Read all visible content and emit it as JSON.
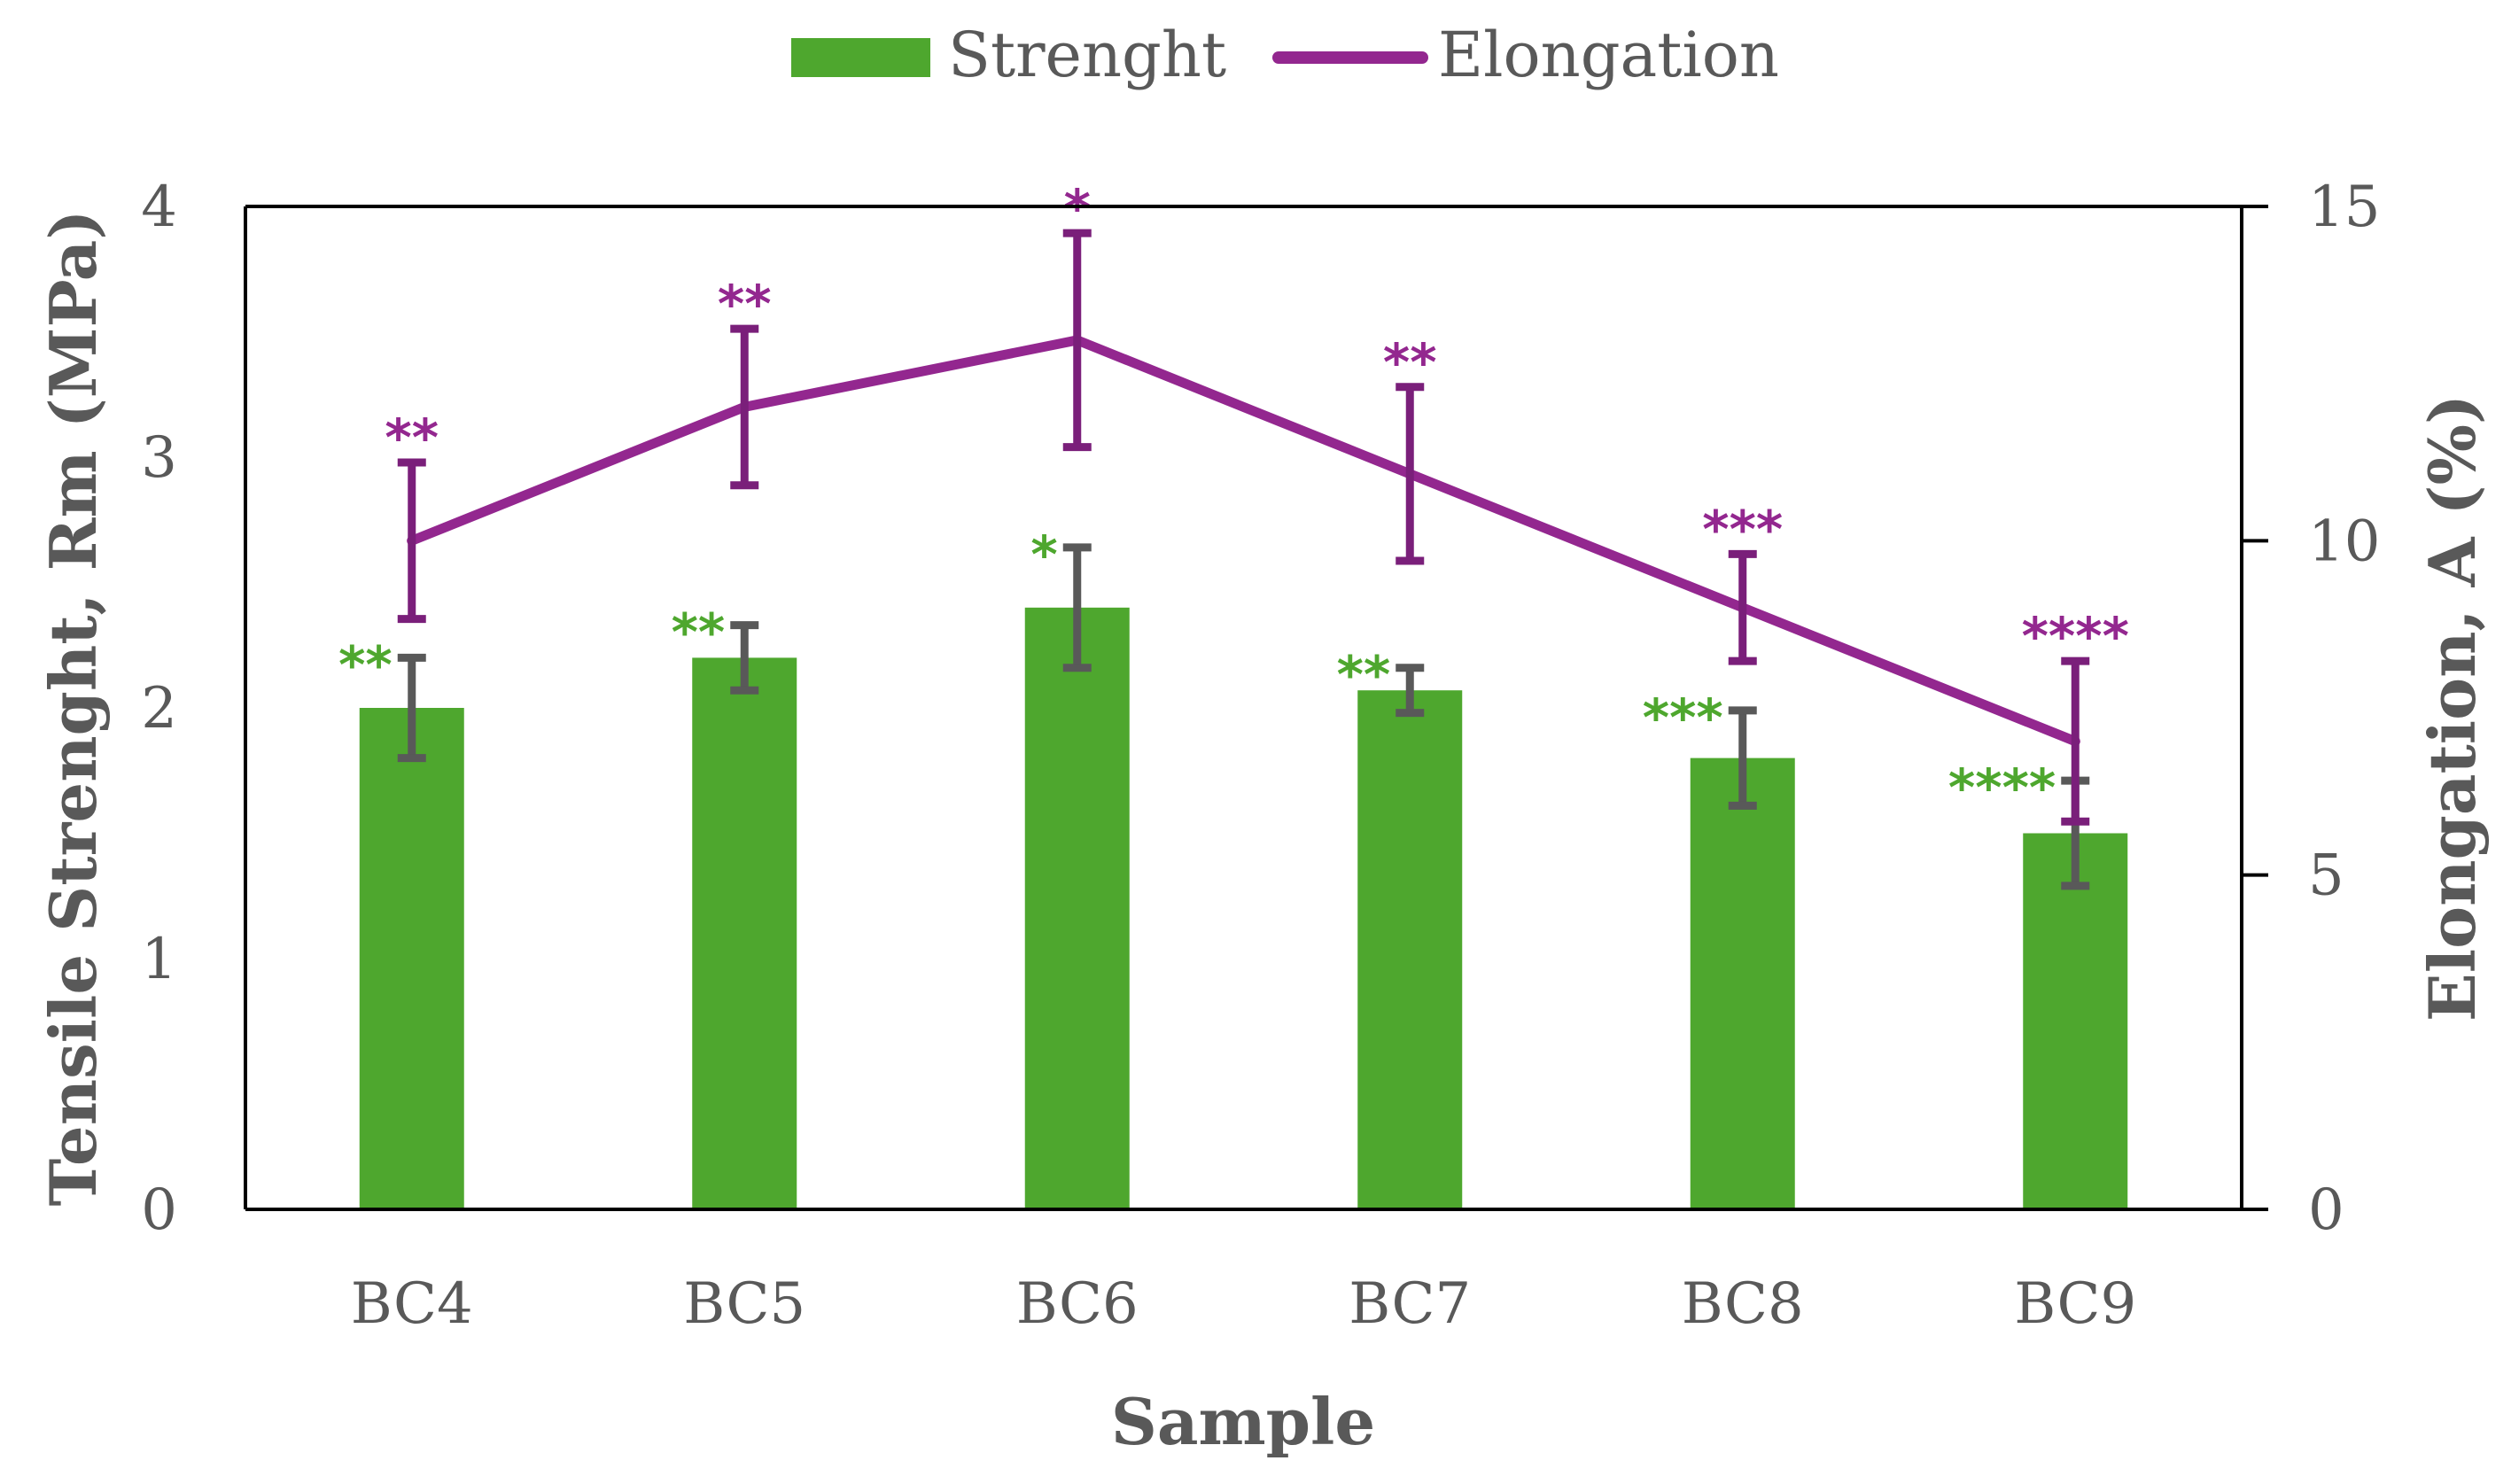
{
  "colors": {
    "strength": "#4ea72e",
    "elongation": "#93278f",
    "strength_error": "#595959",
    "elongation_error": "#7a1f7a",
    "axis": "#000000",
    "text": "#595959"
  },
  "legend": {
    "strength_label": "Strenght",
    "elongation_label": "Elongation"
  },
  "chart_data": {
    "type": "bar",
    "title": "",
    "xlabel": "Sample",
    "ylabel": "Tensile Strenght, Rm (MPa)",
    "y2label": "Elongation, A (%)",
    "ylim": [
      0,
      4
    ],
    "y2lim": [
      0,
      15
    ],
    "yticks": [
      "0",
      "1",
      "2",
      "3",
      "4"
    ],
    "y2ticks": [
      "0",
      "5",
      "10",
      "15"
    ],
    "legend_position": "top-center",
    "categories": [
      "BC4",
      "BC5",
      "BC6",
      "BC7",
      "BC8",
      "BC9"
    ],
    "series": [
      {
        "name": "Strenght",
        "type": "bar",
        "axis": "left",
        "values": [
          2.0,
          2.2,
          2.4,
          2.07,
          1.8,
          1.5
        ],
        "errors": [
          0.2,
          0.13,
          0.24,
          0.09,
          0.19,
          0.21
        ],
        "significance": [
          "**",
          "**",
          "*",
          "**",
          "***",
          "****"
        ]
      },
      {
        "name": "Elongation",
        "type": "line",
        "axis": "right",
        "values": [
          10.0,
          12.0,
          13.0,
          11.0,
          9.0,
          7.0
        ],
        "errors": [
          1.17,
          1.17,
          1.6,
          1.3,
          0.8,
          1.2
        ],
        "significance": [
          "**",
          "**",
          "*",
          "**",
          "***",
          "****"
        ]
      }
    ]
  }
}
